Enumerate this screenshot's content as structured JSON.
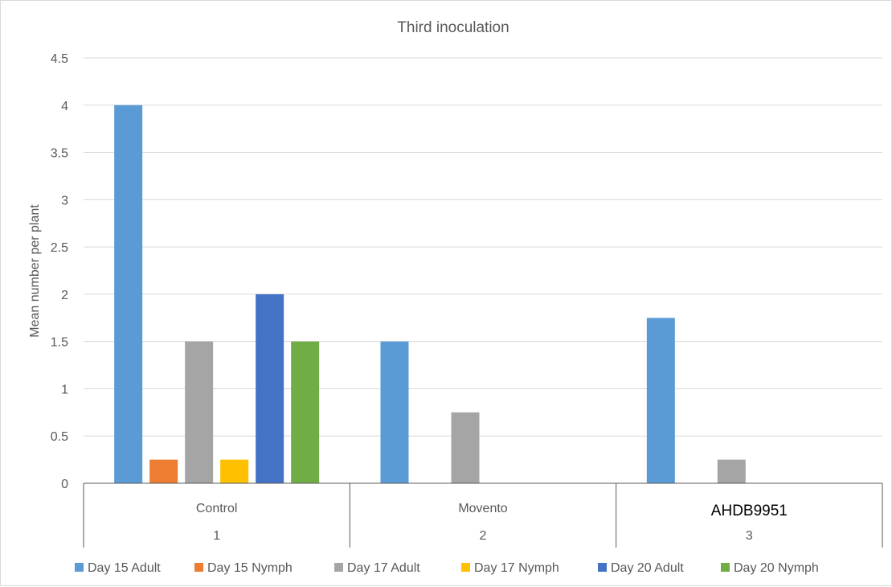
{
  "chart_data": {
    "type": "bar",
    "title": "Third inoculation",
    "ylabel": "Mean number per plant",
    "xlabel": "",
    "ylim": [
      0,
      4.5
    ],
    "yticks": [
      0,
      0.5,
      1,
      1.5,
      2,
      2.5,
      3,
      3.5,
      4,
      4.5
    ],
    "ytick_labels": [
      "0",
      "0.5",
      "1",
      "1.5",
      "2",
      "2.5",
      "3",
      "3.5",
      "4",
      "4.5"
    ],
    "categories": [
      "Control",
      "Movento",
      "AHDB9951"
    ],
    "category_numbers": [
      "1",
      "2",
      "3"
    ],
    "grid": true,
    "legend_position": "bottom",
    "series": [
      {
        "name": "Day 15 Adult",
        "color": "#5b9bd5",
        "values": [
          4,
          1.5,
          1.75
        ]
      },
      {
        "name": "Day 15 Nymph",
        "color": "#ed7d31",
        "values": [
          0.25,
          0,
          0
        ]
      },
      {
        "name": "Day 17 Adult",
        "color": "#a5a5a5",
        "values": [
          1.5,
          0.75,
          0.25
        ]
      },
      {
        "name": "Day 17 Nymph",
        "color": "#ffc000",
        "values": [
          0.25,
          0,
          0
        ]
      },
      {
        "name": "Day 20 Adult",
        "color": "#4472c4",
        "values": [
          2,
          0,
          0
        ]
      },
      {
        "name": "Day 20 Nymph",
        "color": "#70ad47",
        "values": [
          1.5,
          0,
          0
        ]
      }
    ]
  }
}
